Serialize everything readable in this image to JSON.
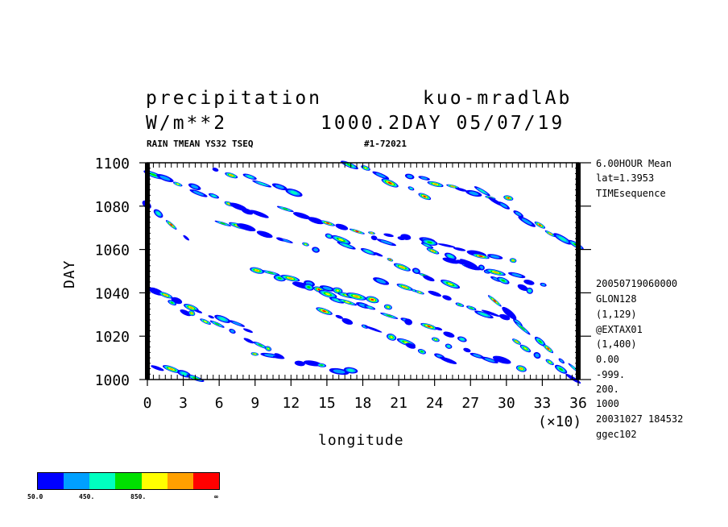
{
  "header": {
    "title_left": "precipitation",
    "title_right": "kuo-mradlAb",
    "units": "W/m**2",
    "run": "1000.2DAY 05/07/19",
    "sub_left": "RAIN TMEAN YS32 TSEQ",
    "sub_right": "#1-72021"
  },
  "right_info": {
    "top": [
      "6.00HOUR Mean",
      "lat=1.3953",
      "TIMEsequence"
    ],
    "bottom": [
      "20050719060000",
      "GLON128",
      "(1,129)",
      "@EXTAX01",
      "(1,400)",
      "0.00",
      "-999.",
      "200.",
      "1000",
      "20031027 184532",
      "ggec102"
    ]
  },
  "chart_data": {
    "type": "heatmap",
    "xlabel": "longitude",
    "ylabel": "DAY",
    "x_multiplier": "(×10)",
    "xlim": [
      0,
      36
    ],
    "ylim": [
      1000,
      1100
    ],
    "xticks": [
      "0",
      "3",
      "6",
      "9",
      "12",
      "15",
      "18",
      "21",
      "24",
      "27",
      "30",
      "33",
      "36"
    ],
    "yticks": [
      "1000",
      "1020",
      "1040",
      "1060",
      "1080",
      "1100"
    ],
    "colorbar": {
      "colors": [
        "#0000ff",
        "#00a0ff",
        "#00ffc0",
        "#00e000",
        "#ffff00",
        "#ffa000",
        "#ff0000"
      ],
      "labels": [
        "50.0",
        "450.",
        "850.",
        "∞"
      ]
    },
    "rain_bands": [
      {
        "x0": 0.5,
        "y0": 1095,
        "x1": 9.5,
        "y1": 1076
      },
      {
        "x0": 6.0,
        "y0": 1097,
        "x1": 12.0,
        "y1": 1086
      },
      {
        "x0": 17.0,
        "y0": 1099,
        "x1": 23.0,
        "y1": 1085
      },
      {
        "x0": 22.0,
        "y0": 1094,
        "x1": 30.0,
        "y1": 1083
      },
      {
        "x0": 28.0,
        "y0": 1086,
        "x1": 35.5,
        "y1": 1062
      },
      {
        "x0": 6.5,
        "y0": 1073,
        "x1": 14.0,
        "y1": 1060
      },
      {
        "x0": 15.0,
        "y0": 1066,
        "x1": 25.0,
        "y1": 1045
      },
      {
        "x0": 19.0,
        "y0": 1068,
        "x1": 30.5,
        "y1": 1055
      },
      {
        "x0": 23.0,
        "y0": 1062,
        "x1": 32.0,
        "y1": 1041
      },
      {
        "x0": 25.0,
        "y0": 1055,
        "x1": 33.0,
        "y1": 1044
      },
      {
        "x0": 9.0,
        "y0": 1050,
        "x1": 20.0,
        "y1": 1035
      },
      {
        "x0": 13.0,
        "y0": 1043,
        "x1": 26.0,
        "y1": 1020
      },
      {
        "x0": 20.0,
        "y0": 1046,
        "x1": 30.0,
        "y1": 1027
      },
      {
        "x0": 0.5,
        "y0": 1040,
        "x1": 8.5,
        "y1": 1023
      },
      {
        "x0": 2.0,
        "y0": 1035,
        "x1": 11.0,
        "y1": 1012
      },
      {
        "x0": 15.0,
        "y0": 1030,
        "x1": 25.0,
        "y1": 1010
      },
      {
        "x0": 29.0,
        "y0": 1035,
        "x1": 35.5,
        "y1": 1005
      },
      {
        "x0": 30.5,
        "y0": 1018,
        "x1": 35.5,
        "y1": 1001
      },
      {
        "x0": 1.0,
        "y0": 1006,
        "x1": 4.0,
        "y1": 1000
      },
      {
        "x0": 9.0,
        "y0": 1011,
        "x1": 17.0,
        "y1": 1004
      },
      {
        "x0": 24.0,
        "y0": 1018,
        "x1": 31.0,
        "y1": 1006
      },
      {
        "x0": 0.0,
        "y0": 1080,
        "x1": 3.0,
        "y1": 1066
      },
      {
        "x0": 12.0,
        "y0": 1078,
        "x1": 20.0,
        "y1": 1064
      }
    ]
  }
}
